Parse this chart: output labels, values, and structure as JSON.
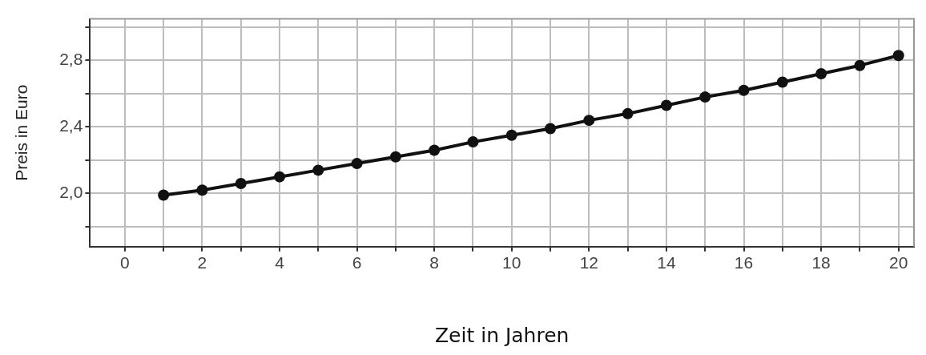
{
  "chart_data": {
    "type": "line",
    "xlabel": "Zeit in Jahren",
    "ylabel": "Preis in Euro",
    "x": [
      1,
      2,
      3,
      4,
      5,
      6,
      7,
      8,
      9,
      10,
      11,
      12,
      13,
      14,
      15,
      16,
      17,
      18,
      19,
      20
    ],
    "series": [
      {
        "color": "#111111",
        "values": [
          1.99,
          2.02,
          2.06,
          2.1,
          2.14,
          2.18,
          2.22,
          2.26,
          2.31,
          2.35,
          2.39,
          2.44,
          2.48,
          2.53,
          2.58,
          2.62,
          2.67,
          2.72,
          2.77,
          2.83
        ]
      }
    ],
    "xlim": [
      -0.9,
      20.4
    ],
    "ylim": [
      1.68,
      3.05
    ],
    "xticks": [
      0,
      {
        "value": 1,
        "label": null
      },
      2,
      {
        "value": 3,
        "label": null
      },
      4,
      {
        "value": 5,
        "label": null
      },
      6,
      {
        "value": 7,
        "label": null
      },
      8,
      {
        "value": 9,
        "label": null
      },
      10,
      {
        "value": 11,
        "label": null
      },
      12,
      {
        "value": 13,
        "label": null
      },
      14,
      {
        "value": 15,
        "label": null
      },
      16,
      {
        "value": 17,
        "label": null
      },
      18,
      {
        "value": 19,
        "label": null
      },
      20
    ],
    "yticks": [
      {
        "value": 1.8,
        "label": null
      },
      {
        "value": 2.0,
        "label": "2,0"
      },
      {
        "value": 2.2,
        "label": null
      },
      {
        "value": 2.4,
        "label": "2,4"
      },
      {
        "value": 2.6,
        "label": null
      },
      {
        "value": 2.8,
        "label": "2,8"
      },
      {
        "value": 3.0,
        "label": null
      }
    ],
    "grid": true,
    "legend": false,
    "marker": "circle",
    "line_style": "solid"
  }
}
